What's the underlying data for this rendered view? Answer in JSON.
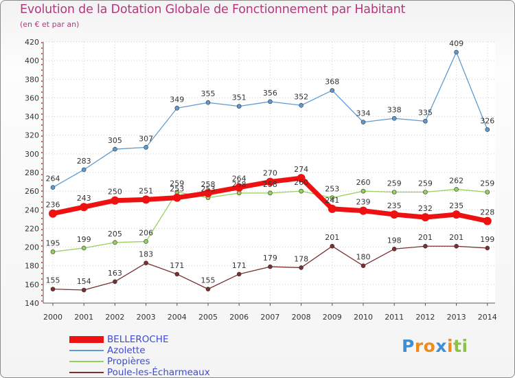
{
  "chart_data": {
    "type": "line",
    "title": "Evolution de la Dotation Globale de Fonctionnement par Habitant",
    "subtitle": "(en € et par an)",
    "x": [
      "2000",
      "2001",
      "2002",
      "2003",
      "2004",
      "2005",
      "2006",
      "2007",
      "2008",
      "2009",
      "2010",
      "2011",
      "2012",
      "2013",
      "2014"
    ],
    "ylim": [
      140,
      420
    ],
    "yticks": [
      140,
      160,
      180,
      200,
      220,
      240,
      260,
      280,
      300,
      320,
      340,
      360,
      380,
      400,
      420
    ],
    "grid": true,
    "legend_position": "bottom-left",
    "series": [
      {
        "name": "BELLEROCHE",
        "color": "#ee1111",
        "values": [
          236,
          243,
          250,
          251,
          253,
          258,
          264,
          270,
          274,
          241,
          239,
          235,
          232,
          235,
          228
        ]
      },
      {
        "name": "Azolette",
        "color": "#5e9ad0",
        "values": [
          264,
          283,
          305,
          307,
          349,
          355,
          351,
          356,
          352,
          368,
          334,
          338,
          335,
          409,
          326
        ]
      },
      {
        "name": "Propières",
        "color": "#95d05c",
        "values": [
          195,
          199,
          205,
          206,
          259,
          253,
          258,
          258,
          260,
          253,
          260,
          259,
          259,
          262,
          259
        ]
      },
      {
        "name": "Poule-les-Écharmeaux",
        "color": "#7a3030",
        "values": [
          155,
          154,
          163,
          183,
          171,
          155,
          171,
          179,
          178,
          201,
          180,
          198,
          201,
          201,
          199
        ]
      }
    ]
  },
  "logo": {
    "letters": [
      {
        "ch": "P",
        "color": "#3d8fd6"
      },
      {
        "ch": "r",
        "color": "#f08a1c"
      },
      {
        "ch": "o",
        "color": "#f08a1c"
      },
      {
        "ch": "x",
        "color": "#3d8fd6"
      },
      {
        "ch": "i",
        "color": "#f08a1c"
      },
      {
        "ch": "t",
        "color": "#8bc34a"
      },
      {
        "ch": "i",
        "color": "#8bc34a"
      }
    ]
  }
}
